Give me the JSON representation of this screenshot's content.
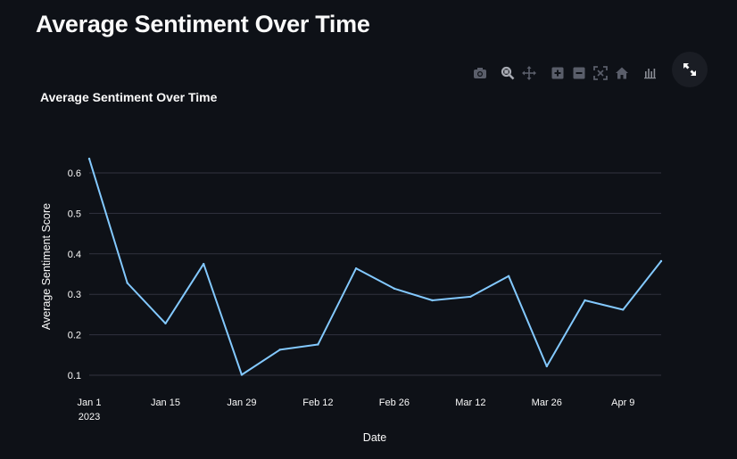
{
  "page": {
    "title": "Average Sentiment Over Time"
  },
  "modebar": {
    "icons": [
      "camera-icon",
      "zoom-icon",
      "pan-icon",
      "zoom-in-icon",
      "zoom-out-icon",
      "autoscale-icon",
      "reset-axes-icon",
      "plotly-logo-icon"
    ]
  },
  "fullscreen": {
    "icon": "expand-icon"
  },
  "colors": {
    "background": "#0e1117",
    "line": "#83c9ff",
    "grid": "#31333f",
    "text": "#fafafa",
    "icon": "#5a5e6a"
  },
  "chart_data": {
    "type": "line",
    "title": "Average Sentiment Over Time",
    "xlabel": "Date",
    "ylabel": "Average Sentiment Score",
    "grid": true,
    "xlim": [
      "2023-01-01",
      "2023-04-16"
    ],
    "ylim": [
      0.1,
      0.6
    ],
    "x_ticks": [
      {
        "date": "2023-01-01",
        "label": "Jan 1",
        "sublabel": "2023"
      },
      {
        "date": "2023-01-15",
        "label": "Jan 15"
      },
      {
        "date": "2023-01-29",
        "label": "Jan 29"
      },
      {
        "date": "2023-02-12",
        "label": "Feb 12"
      },
      {
        "date": "2023-02-26",
        "label": "Feb 26"
      },
      {
        "date": "2023-03-12",
        "label": "Mar 12"
      },
      {
        "date": "2023-03-26",
        "label": "Mar 26"
      },
      {
        "date": "2023-04-09",
        "label": "Apr 9"
      }
    ],
    "y_ticks": [
      0.1,
      0.2,
      0.3,
      0.4,
      0.5,
      0.6
    ],
    "series": [
      {
        "x": [
          "2023-01-01",
          "2023-01-08",
          "2023-01-15",
          "2023-01-22",
          "2023-01-29",
          "2023-02-05",
          "2023-02-12",
          "2023-02-19",
          "2023-02-26",
          "2023-03-05",
          "2023-03-12",
          "2023-03-19",
          "2023-03-26",
          "2023-04-02",
          "2023-04-09",
          "2023-04-16"
        ],
        "values": [
          0.635,
          0.328,
          0.228,
          0.375,
          0.101,
          0.163,
          0.176,
          0.364,
          0.314,
          0.285,
          0.294,
          0.345,
          0.122,
          0.285,
          0.262,
          0.382
        ]
      }
    ]
  }
}
